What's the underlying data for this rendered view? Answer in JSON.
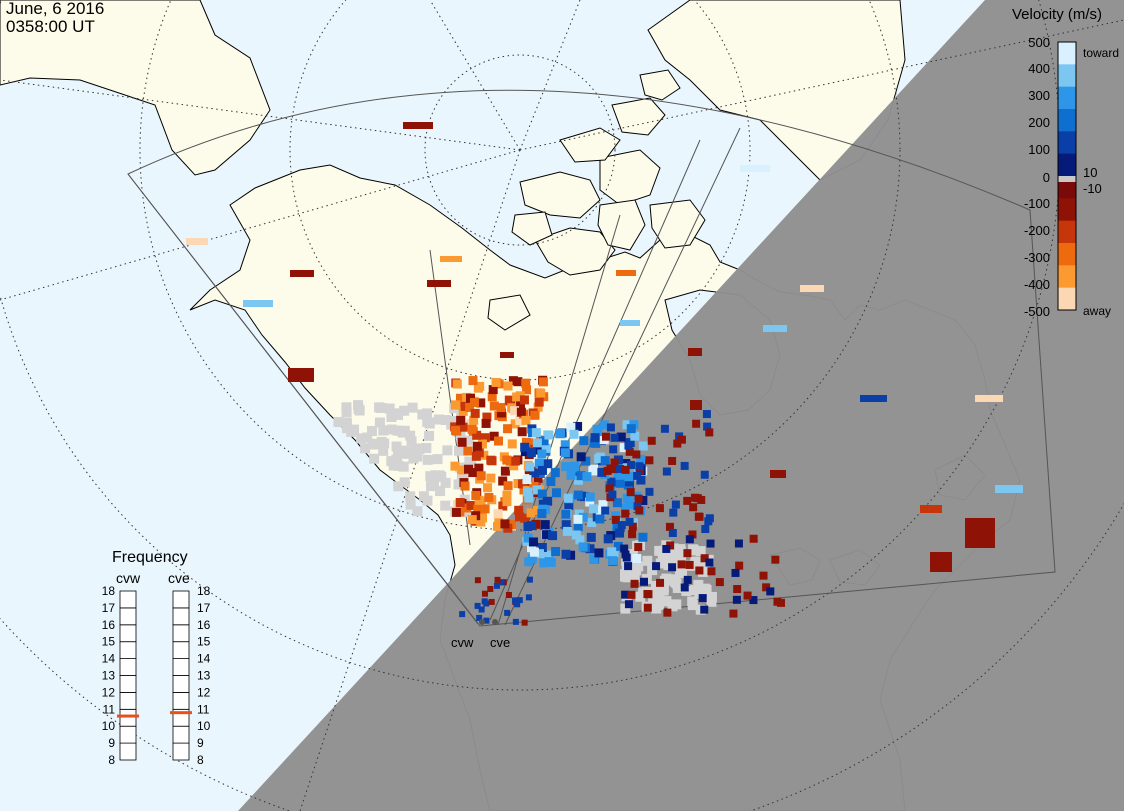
{
  "timestamp": {
    "date": "June, 6 2016",
    "time": "0358:00 UT"
  },
  "colors": {
    "ocean": "#eaf6fd",
    "land": "#fdfbe9",
    "night": "#909090",
    "ground_scatter": "#d3d3d3",
    "frequency_marker": "#e8501a"
  },
  "velocity_legend": {
    "title": "Velocity (m/s)",
    "tick_labels": [
      "500",
      "400",
      "300",
      "200",
      "100",
      "10",
      "0",
      "-10",
      "-100",
      "-200",
      "-300",
      "-400",
      "-500"
    ],
    "toward_label": "toward",
    "away_label": "away",
    "range": [
      -500,
      500
    ],
    "color_stops": [
      {
        "value": 500,
        "color": "#d9f0ff"
      },
      {
        "value": 400,
        "color": "#7cc7f2"
      },
      {
        "value": 300,
        "color": "#2e96e8"
      },
      {
        "value": 200,
        "color": "#0f6fd0"
      },
      {
        "value": 100,
        "color": "#0a3fa8"
      },
      {
        "value": 10,
        "color": "#061a7a"
      },
      {
        "value": -10,
        "color": "#7a0a0a"
      },
      {
        "value": -100,
        "color": "#8e1206"
      },
      {
        "value": -200,
        "color": "#c7360a"
      },
      {
        "value": -300,
        "color": "#ee6a0e"
      },
      {
        "value": -400,
        "color": "#fb9a30"
      },
      {
        "value": -500,
        "color": "#fcd7b4"
      }
    ]
  },
  "frequency_panel": {
    "title": "Frequency",
    "scale_min": 8,
    "scale_max": 18,
    "tick_labels": [
      "18",
      "17",
      "16",
      "15",
      "14",
      "13",
      "12",
      "11",
      "10",
      "9",
      "8"
    ],
    "radars": [
      {
        "name": "cvw",
        "frequency_mhz": 10.6
      },
      {
        "name": "cve",
        "frequency_mhz": 10.8
      }
    ]
  },
  "radar_sites": [
    {
      "name": "cvw"
    },
    {
      "name": "cve"
    }
  ]
}
